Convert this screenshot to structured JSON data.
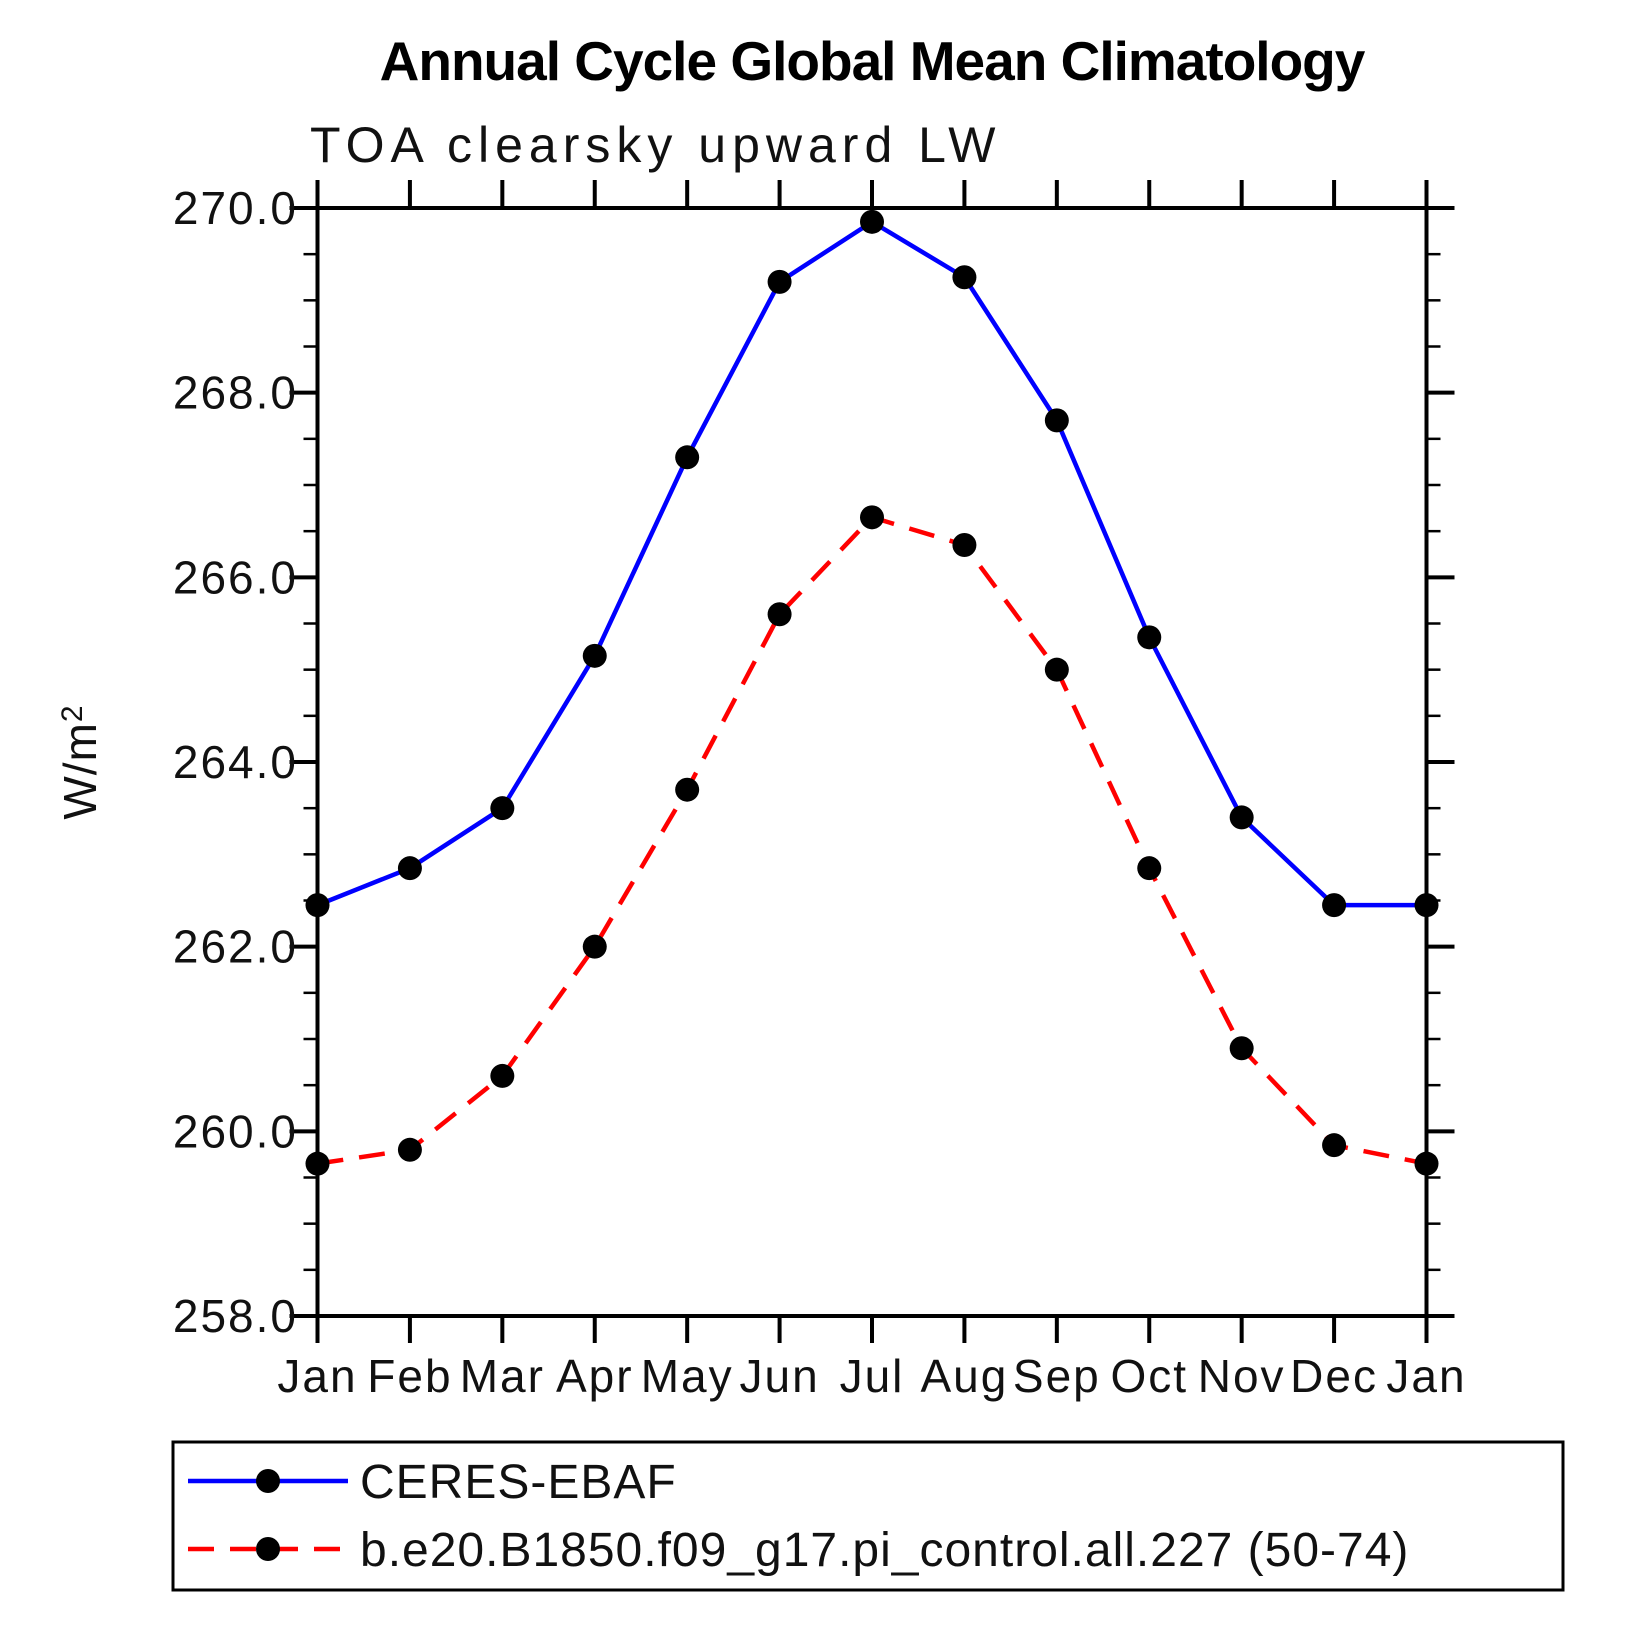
{
  "window": {
    "background_color": "#ffffff"
  },
  "chart_data": {
    "type": "line",
    "title": "Annual Cycle Global Mean Climatology",
    "subtitle": "TOA clearsky upward LW",
    "ylabel": "W/m",
    "ylabel_superscript": "2",
    "xlabel": "",
    "categories": [
      "Jan",
      "Feb",
      "Mar",
      "Apr",
      "May",
      "Jun",
      "Jul",
      "Aug",
      "Sep",
      "Oct",
      "Nov",
      "Dec",
      "Jan"
    ],
    "ylim": [
      258.0,
      270.0
    ],
    "ytick_major_step": 2.0,
    "ytick_minor_step": 0.5,
    "ytick_labels": [
      "258.0",
      "260.0",
      "262.0",
      "264.0",
      "266.0",
      "268.0",
      "270.0"
    ],
    "grid": false,
    "legend_position": "below-bottom-left-box",
    "axis_color": "#000000",
    "marker_shape": "filled-circle",
    "series": [
      {
        "name": "CERES-EBAF",
        "line_color": "#0000ff",
        "line_style": "solid",
        "marker_color": "#000000",
        "values": [
          262.45,
          262.85,
          263.5,
          265.15,
          267.3,
          269.2,
          269.85,
          269.25,
          267.7,
          265.35,
          263.4,
          262.45,
          262.45
        ]
      },
      {
        "name": "b.e20.B1850.f09_g17.pi_control.all.227 (50-74)",
        "line_color": "#ff0000",
        "line_style": "dashed",
        "marker_color": "#000000",
        "values": [
          259.65,
          259.8,
          260.6,
          262.0,
          263.7,
          265.6,
          266.65,
          266.35,
          265.0,
          262.85,
          260.9,
          259.85,
          259.65
        ]
      }
    ]
  }
}
